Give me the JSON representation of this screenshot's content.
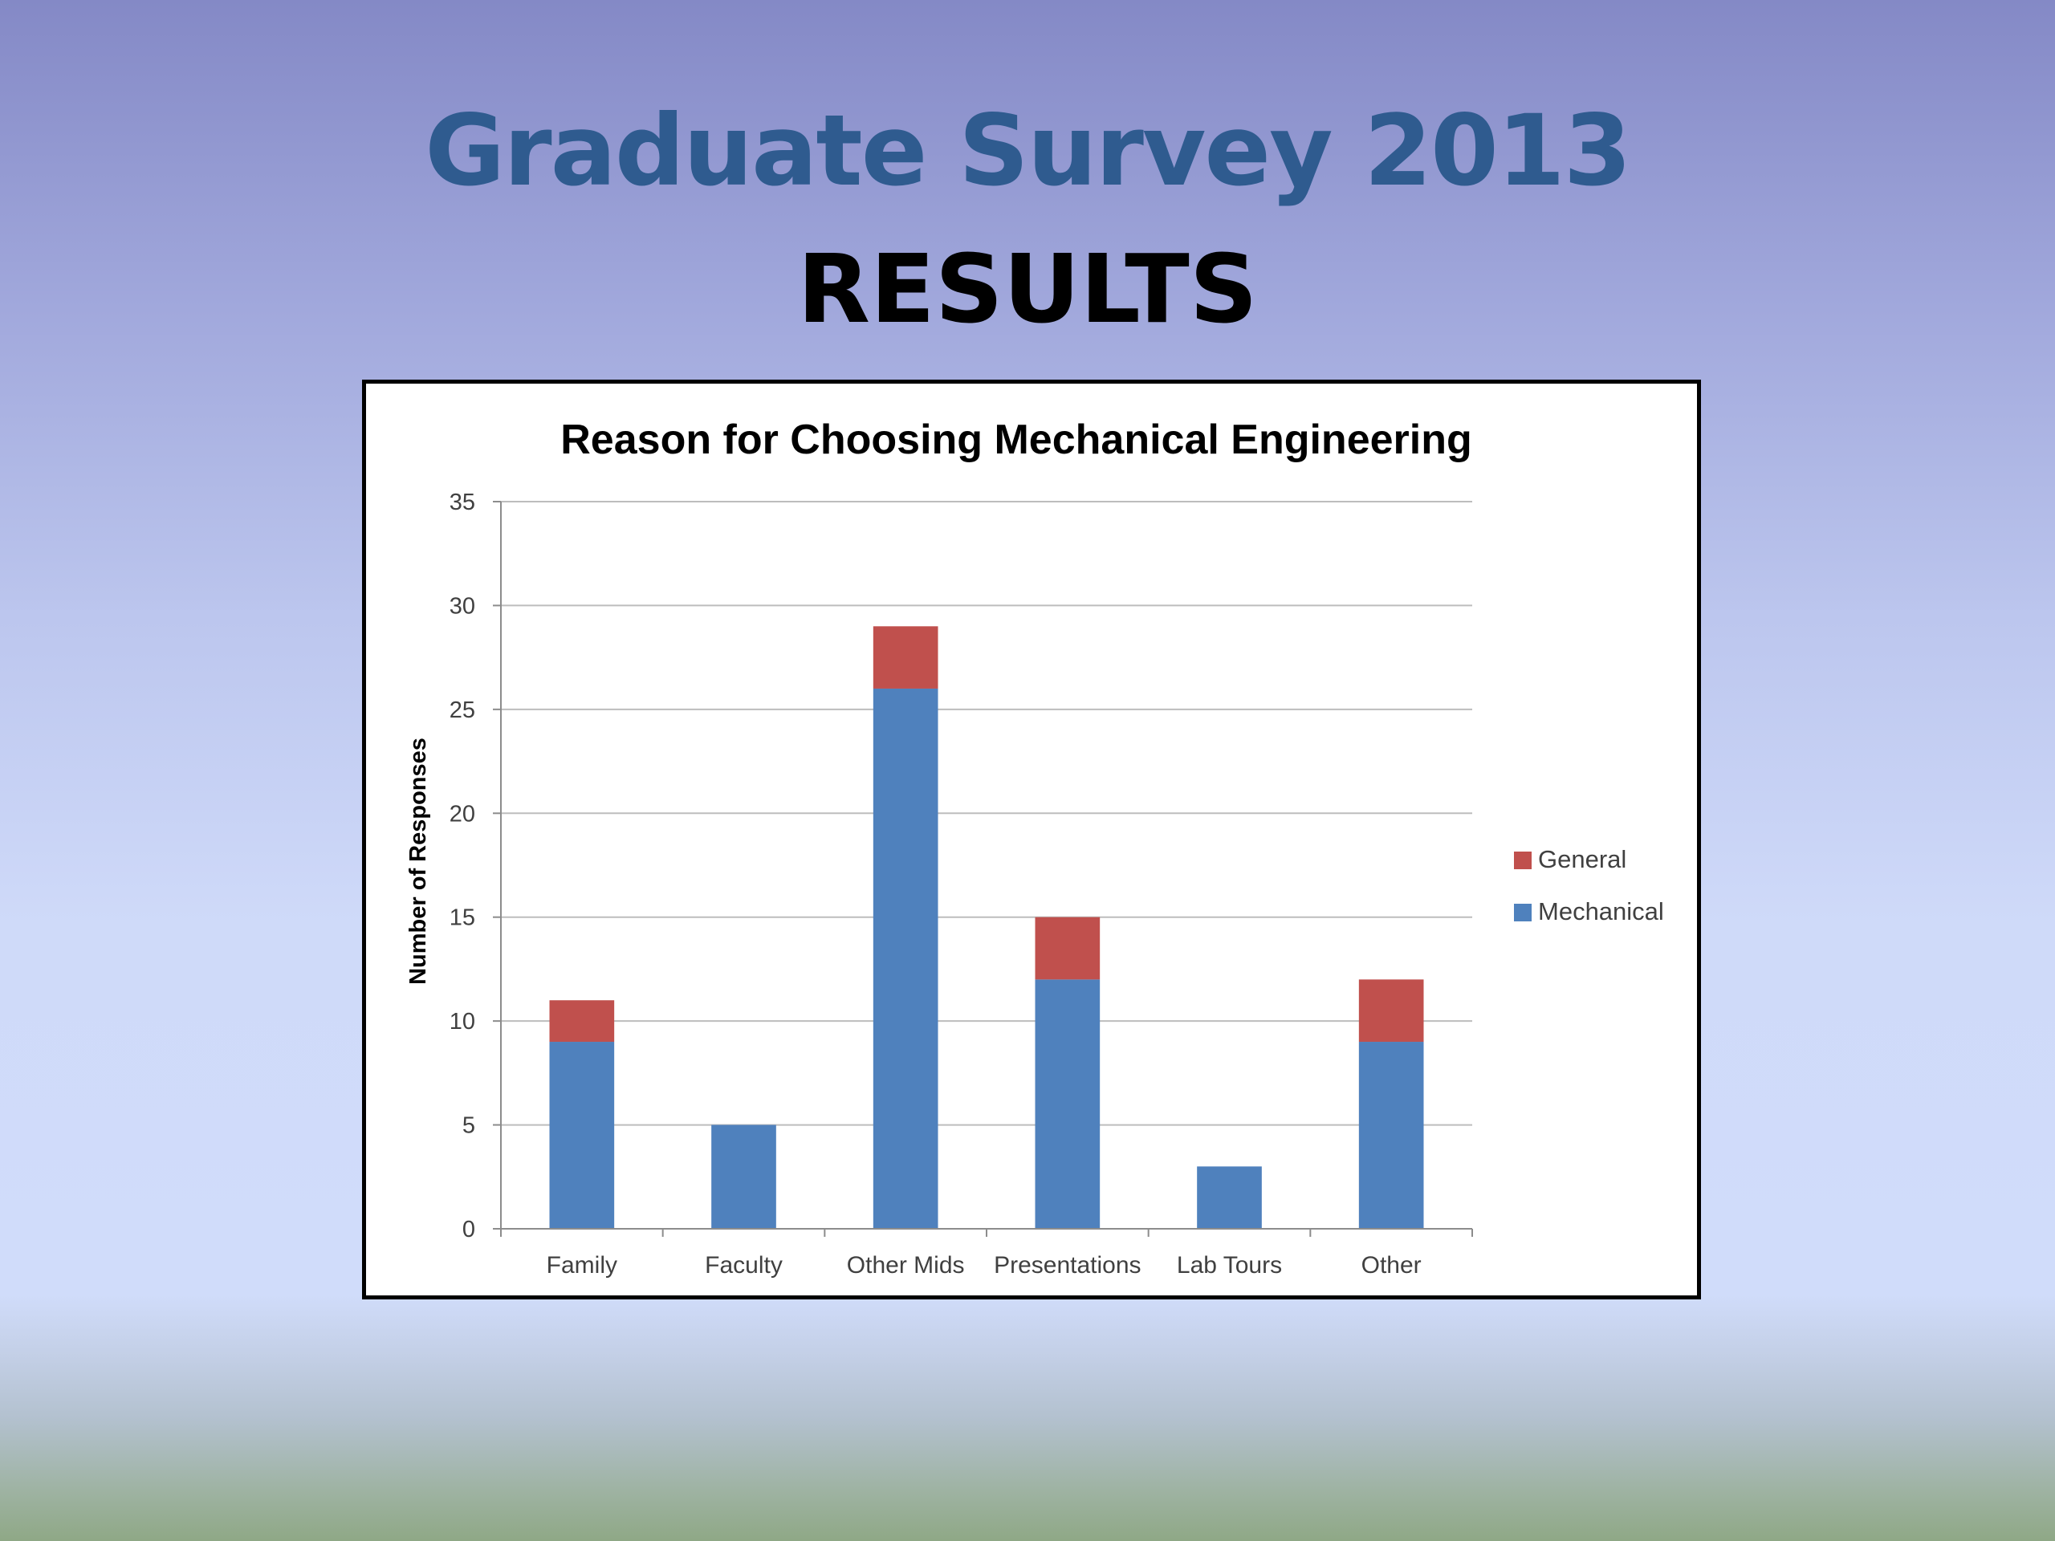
{
  "slide": {
    "title": "Graduate Survey 2013",
    "subtitle": "RESULTS"
  },
  "colors": {
    "title": "#2f5b8f",
    "mechanical": "#4f81bd",
    "general": "#c0504d"
  },
  "chart_data": {
    "type": "bar",
    "stacked": true,
    "title": "Reason for Choosing Mechanical Engineering",
    "xlabel": "",
    "ylabel": "Number of Responses",
    "categories": [
      "Family",
      "Faculty",
      "Other Mids",
      "Presentations",
      "Lab Tours",
      "Other"
    ],
    "series": [
      {
        "name": "Mechanical",
        "color": "#4f81bd",
        "values": [
          9,
          5,
          26,
          12,
          3,
          9
        ]
      },
      {
        "name": "General",
        "color": "#c0504d",
        "values": [
          2,
          0,
          3,
          3,
          0,
          3
        ]
      }
    ],
    "ylim": [
      0,
      35
    ],
    "yticks": [
      0,
      5,
      10,
      15,
      20,
      25,
      30,
      35
    ],
    "grid": true,
    "legend": {
      "position": "right",
      "order": [
        "General",
        "Mechanical"
      ]
    }
  }
}
